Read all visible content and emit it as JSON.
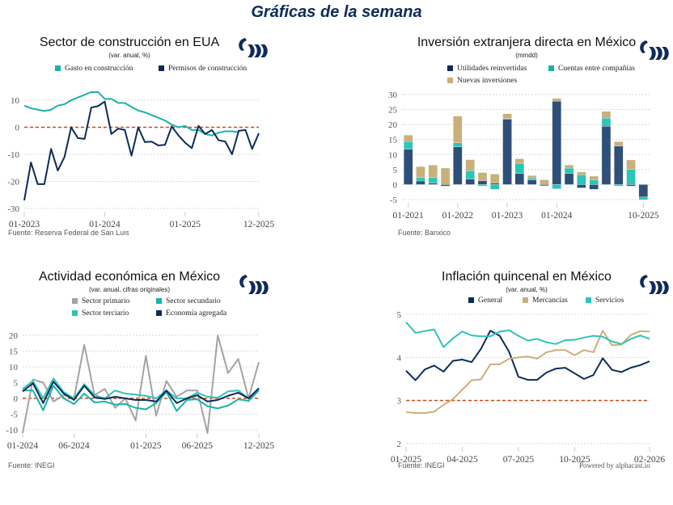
{
  "page_title": "Gráficas de la semana",
  "colors": {
    "navy": "#0d2b5a",
    "teal": "#19b2a8",
    "teal2": "#2ec4b6",
    "gold": "#c8b07a",
    "grey": "#a3a3a3",
    "ref": "#d2491c"
  },
  "logo_icon": "brand-logo",
  "powered_by": "Powered by alphacast.io",
  "chart_data": [
    {
      "type": "line",
      "title": "Sector de construcción en EUA",
      "subtitle": "(var. anual, %)",
      "source": "Fuente: Reserva Federal de San Luis",
      "ylim": [
        -30,
        10
      ],
      "yticks": [
        10,
        0,
        -10,
        -20,
        -30
      ],
      "xticks": [
        "01-2023",
        "01-2024",
        "01-2025",
        "12-2025"
      ],
      "xtick_index": [
        0,
        12,
        24,
        35
      ],
      "n": 36,
      "reference_line": 0,
      "grid": true,
      "series": [
        {
          "name": "Gasto en construcción",
          "color": "#19b2a8",
          "values": [
            8,
            7,
            6.5,
            6,
            6.5,
            8,
            8.5,
            10,
            11,
            12,
            13,
            13,
            10.5,
            10.5,
            9,
            9,
            7.5,
            6.2,
            5.5,
            4.5,
            3.5,
            2.5,
            1,
            0,
            0.5,
            -1,
            -1,
            -2.5,
            -3,
            -2,
            -1.5,
            -1.5,
            -1.8
          ]
        },
        {
          "name": "Permisos de construcción",
          "color": "#0d2b5a",
          "values": [
            -27,
            -13,
            -21,
            -21,
            -8,
            -16,
            -11,
            0,
            -4,
            -4.3,
            7.3,
            7.8,
            9.5,
            -2.5,
            -0.5,
            -1,
            -10.5,
            0,
            -5.5,
            -5.3,
            -6.7,
            -6.5,
            0.3,
            -3,
            -5.7,
            -7.7,
            0.5,
            -2.5,
            -1,
            -4.8,
            -5.3,
            -10,
            -1.3,
            -1,
            -8,
            -2.2
          ]
        }
      ]
    },
    {
      "type": "bar",
      "stacked": true,
      "title": "Inversión extranjera directa en México",
      "subtitle": "(mmdd)",
      "source": "Fuente: Banxico",
      "ylim": [
        -5,
        30
      ],
      "yticks": [
        30,
        25,
        20,
        15,
        10,
        5,
        0,
        -5
      ],
      "xticks": [
        "01-2021",
        "01-2022",
        "01-2023",
        "01-2024",
        "10-2025"
      ],
      "xtick_index": [
        0,
        4,
        8,
        12,
        19
      ],
      "n": 20,
      "grid": true,
      "series": [
        {
          "name": "Utilidades reinvertidas",
          "color": "#2e4f78",
          "values": [
            11.8,
            1.2,
            0.5,
            -0.5,
            12.6,
            1.8,
            1.3,
            0.5,
            21.8,
            3.7,
            1.5,
            -0.4,
            27.8,
            3.7,
            -1.1,
            -1.6,
            19.4,
            12.8,
            -0.5,
            -4.1
          ]
        },
        {
          "name": "Cuentas entre compañías",
          "color": "#2ec4b6",
          "values": [
            2.5,
            1.1,
            1.8,
            0,
            1.3,
            2.8,
            -0.5,
            -1.6,
            0.2,
            3.4,
            0.7,
            0,
            -1.4,
            1.8,
            3.3,
            1.5,
            2.7,
            -0.5,
            5.0,
            -1.0
          ]
        },
        {
          "name": "Nuevas inversiones",
          "color": "#c8b07a",
          "values": [
            2.2,
            3.7,
            4.2,
            5.5,
            8.9,
            3.7,
            2.7,
            3.0,
            1.6,
            1.5,
            0.8,
            1.6,
            0.9,
            1.0,
            0.9,
            1.3,
            2.3,
            1.5,
            3.2,
            0
          ]
        }
      ]
    },
    {
      "type": "line",
      "title": "Actividad económica en México",
      "subtitle": "(var. anual, cifras originales)",
      "source": "Fuente: INEGI",
      "ylim": [
        -10,
        20
      ],
      "yticks": [
        20,
        15,
        10,
        5,
        0,
        -5,
        -10
      ],
      "xticks": [
        "01-2024",
        "06-2024",
        "01-2025",
        "06-2025",
        "12-2025"
      ],
      "xtick_index": [
        0,
        5,
        12,
        17,
        23
      ],
      "n": 24,
      "reference_line": 0,
      "grid": true,
      "series": [
        {
          "name": "Sector primario",
          "color": "#a3a3a3",
          "values": [
            -11,
            6,
            5,
            -1,
            1,
            0,
            17,
            1,
            3,
            -3,
            0,
            -7,
            13.5,
            -5.5,
            5.5,
            0.5,
            2.5,
            2.5,
            -11,
            20,
            8,
            12.5,
            0,
            11.5
          ]
        },
        {
          "name": "Sector secundario",
          "color": "#19b2a8",
          "values": [
            2.5,
            2.5,
            -3.8,
            4,
            0,
            -1.8,
            1.5,
            -1.3,
            -1,
            -2,
            -1.8,
            -3,
            -3.5,
            -1.5,
            2,
            -4,
            -0.5,
            -0.3,
            -2.5,
            -3.2,
            -2.3,
            -0.3,
            -0.8,
            2.5
          ]
        },
        {
          "name": "Sector terciario",
          "color": "#2ec4b6",
          "values": [
            3,
            5.5,
            0,
            6.3,
            2,
            0,
            4.5,
            1,
            0,
            2.5,
            1.5,
            1.2,
            0.8,
            0,
            2.5,
            0,
            0,
            1.8,
            0.5,
            0.2,
            2.2,
            2.5,
            0,
            3
          ]
        },
        {
          "name": "Economía agregada",
          "color": "#0d2b5a",
          "values": [
            2.2,
            4.8,
            -1.5,
            5.3,
            1.5,
            -0.5,
            4,
            0.3,
            -0.2,
            0.5,
            0,
            -0.5,
            -0.5,
            -1,
            2.5,
            -1.5,
            0,
            1,
            -1,
            -0.5,
            0.8,
            1.8,
            0,
            3.2
          ]
        }
      ]
    },
    {
      "type": "line",
      "title": "Inflación quincenal en México",
      "subtitle": "(var. anual, %)",
      "source": "Fuente: INEGI",
      "ylim": [
        2,
        5
      ],
      "yticks": [
        5,
        4,
        3,
        2
      ],
      "xticks": [
        "01-2025",
        "04-2025",
        "07-2025",
        "10-2025",
        "02-2026"
      ],
      "xtick_index": [
        0,
        6,
        12,
        18,
        26
      ],
      "n": 27,
      "reference_line": 3,
      "grid": true,
      "series": [
        {
          "name": "General",
          "color": "#0d2b5a",
          "values": [
            3.69,
            3.47,
            3.72,
            3.81,
            3.67,
            3.92,
            3.95,
            3.89,
            4.2,
            4.62,
            4.5,
            4.13,
            3.55,
            3.48,
            3.48,
            3.65,
            3.74,
            3.76,
            3.63,
            3.5,
            3.59,
            3.98,
            3.71,
            3.66,
            3.76,
            3.82,
            3.91
          ]
        },
        {
          "name": "Mercancías",
          "color": "#c8b07a",
          "values": [
            2.73,
            2.71,
            2.71,
            2.74,
            2.9,
            3.03,
            3.25,
            3.47,
            3.49,
            3.84,
            3.84,
            3.97,
            4.0,
            4.02,
            3.97,
            4.12,
            4.17,
            4.17,
            4.05,
            4.17,
            4.12,
            4.62,
            4.28,
            4.3,
            4.52,
            4.61,
            4.6
          ]
        },
        {
          "name": "Servicios",
          "color": "#2ec4b6",
          "values": [
            4.82,
            4.57,
            4.61,
            4.65,
            4.24,
            4.44,
            4.6,
            4.51,
            4.49,
            4.49,
            4.6,
            4.63,
            4.5,
            4.39,
            4.43,
            4.35,
            4.31,
            4.4,
            4.41,
            4.46,
            4.5,
            4.48,
            4.37,
            4.31,
            4.43,
            4.51,
            4.43
          ]
        }
      ]
    }
  ]
}
